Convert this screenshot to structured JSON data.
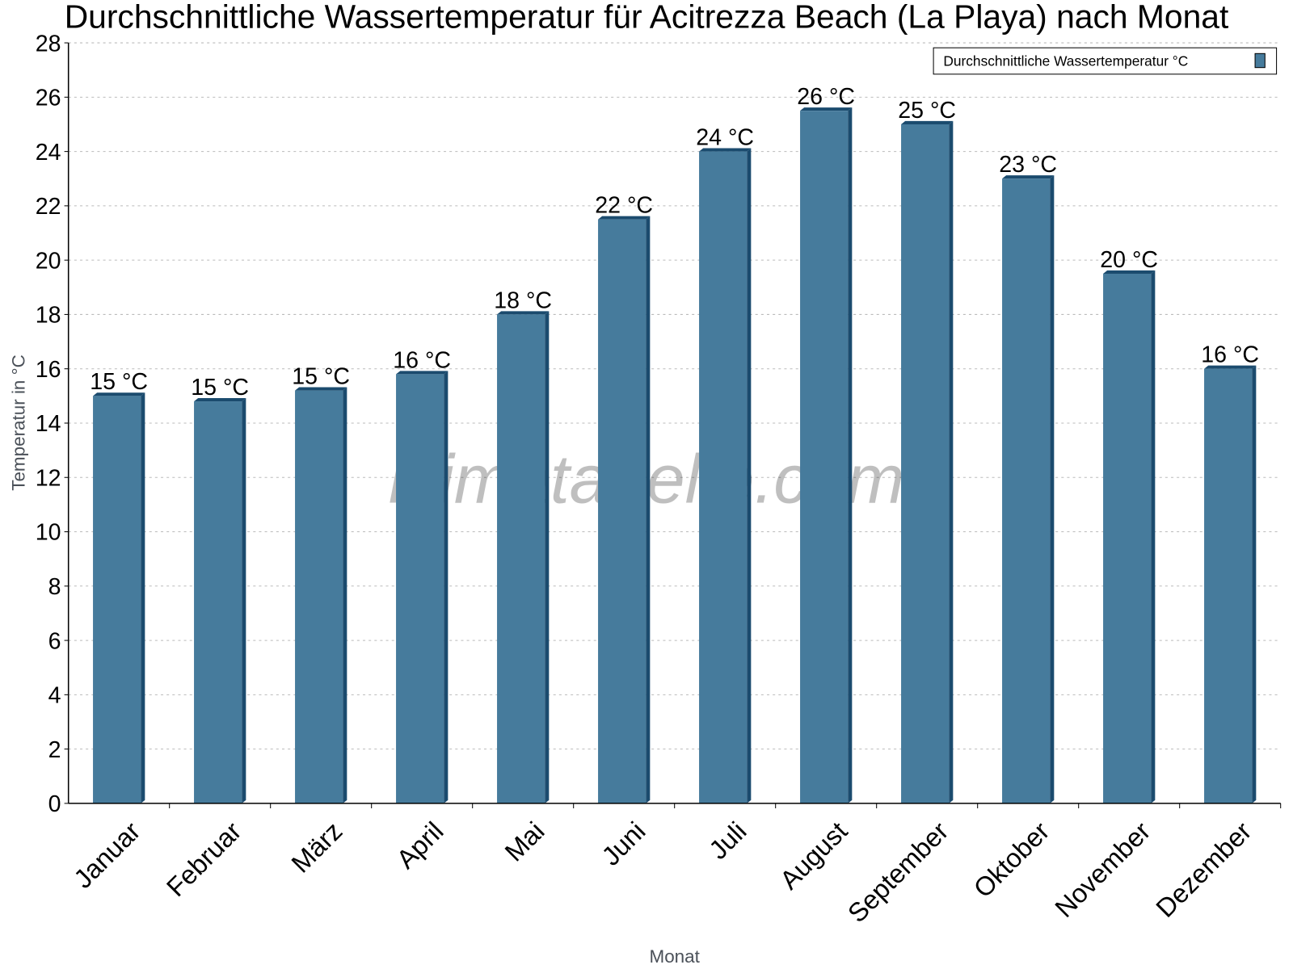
{
  "chart_data": {
    "type": "bar",
    "title": "Durchschnittliche Wassertemperatur für Acitrezza Beach (La Playa) nach Monat",
    "xlabel": "Monat",
    "ylabel": "Temperatur in °C",
    "ylim": [
      0,
      28
    ],
    "yticks": [
      0,
      2,
      4,
      6,
      8,
      10,
      12,
      14,
      16,
      18,
      20,
      22,
      24,
      26,
      28
    ],
    "grid": true,
    "legend_placement": "top-right",
    "watermark": "klimatabelle.com",
    "categories": [
      "Januar",
      "Februar",
      "März",
      "April",
      "Mai",
      "Juni",
      "Juli",
      "August",
      "September",
      "Oktober",
      "November",
      "Dezember"
    ],
    "series": [
      {
        "name": "Durchschnittliche Wassertemperatur °C",
        "color": "#467b9c",
        "side_color": "#1b4b6e",
        "values": [
          15.0,
          14.8,
          15.2,
          15.8,
          18.0,
          21.5,
          24.0,
          25.5,
          25.0,
          23.0,
          19.5,
          16.0
        ],
        "labels": [
          "15 °C",
          "15 °C",
          "15 °C",
          "16 °C",
          "18 °C",
          "22 °C",
          "24 °C",
          "26 °C",
          "25 °C",
          "23 °C",
          "20 °C",
          "16 °C"
        ]
      }
    ]
  }
}
